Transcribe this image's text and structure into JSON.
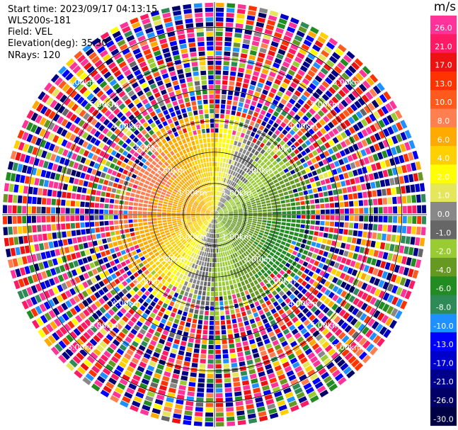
{
  "header": {
    "start_time": "Start time: 2023/09/17 04:13:15",
    "instrument": "WLS200s-181",
    "field": "Field: VEL",
    "elevation": "Elevation(deg): 35.30",
    "nrays": "NRays: 120"
  },
  "chart_data": {
    "type": "heatmap",
    "projection": "polar-ppi",
    "field": "VEL",
    "units": "m/s",
    "n_rays": 120,
    "elevation_deg": 35.3,
    "range_rings_km": [
      1.0,
      2.0,
      3.0,
      4.0,
      5.0,
      6.0
    ],
    "range_ring_labels": [
      "1.00km",
      "2.00km",
      "3.00km",
      "4.00km",
      "5.00km",
      "6.00km"
    ],
    "max_range_km": 6.8,
    "colorbar": {
      "unit": "m/s",
      "range": [
        -30.0,
        26.0
      ],
      "tick_labels": [
        "26.0",
        "21.0",
        "17.0",
        "13.0",
        "10.0",
        "8.0",
        "6.0",
        "4.0",
        "2.0",
        "1.0",
        "0.0",
        "-1.0",
        "-2.0",
        "-4.0",
        "-6.0",
        "-8.0",
        "-10.0",
        "-13.0",
        "-17.0",
        "-21.0",
        "-26.0",
        "-30.0"
      ],
      "colors": [
        "#ff3399",
        "#ff1a66",
        "#ee1111",
        "#ff3300",
        "#ff5a1e",
        "#ff7f50",
        "#ffaa00",
        "#ffd000",
        "#ffff00",
        "#e6e65a",
        "#888888",
        "#666666",
        "#99cc33",
        "#669922",
        "#228b22",
        "#2e8b57",
        "#1e90ff",
        "#0000ff",
        "#0000cc",
        "#00008b",
        "#000066",
        "#000044"
      ]
    },
    "velocity_field": {
      "approach_azimuth_deg": 110,
      "recede_azimuth_deg": 290,
      "peak_speed_ms": 7.0,
      "valid_range_km": 3.2
    }
  }
}
